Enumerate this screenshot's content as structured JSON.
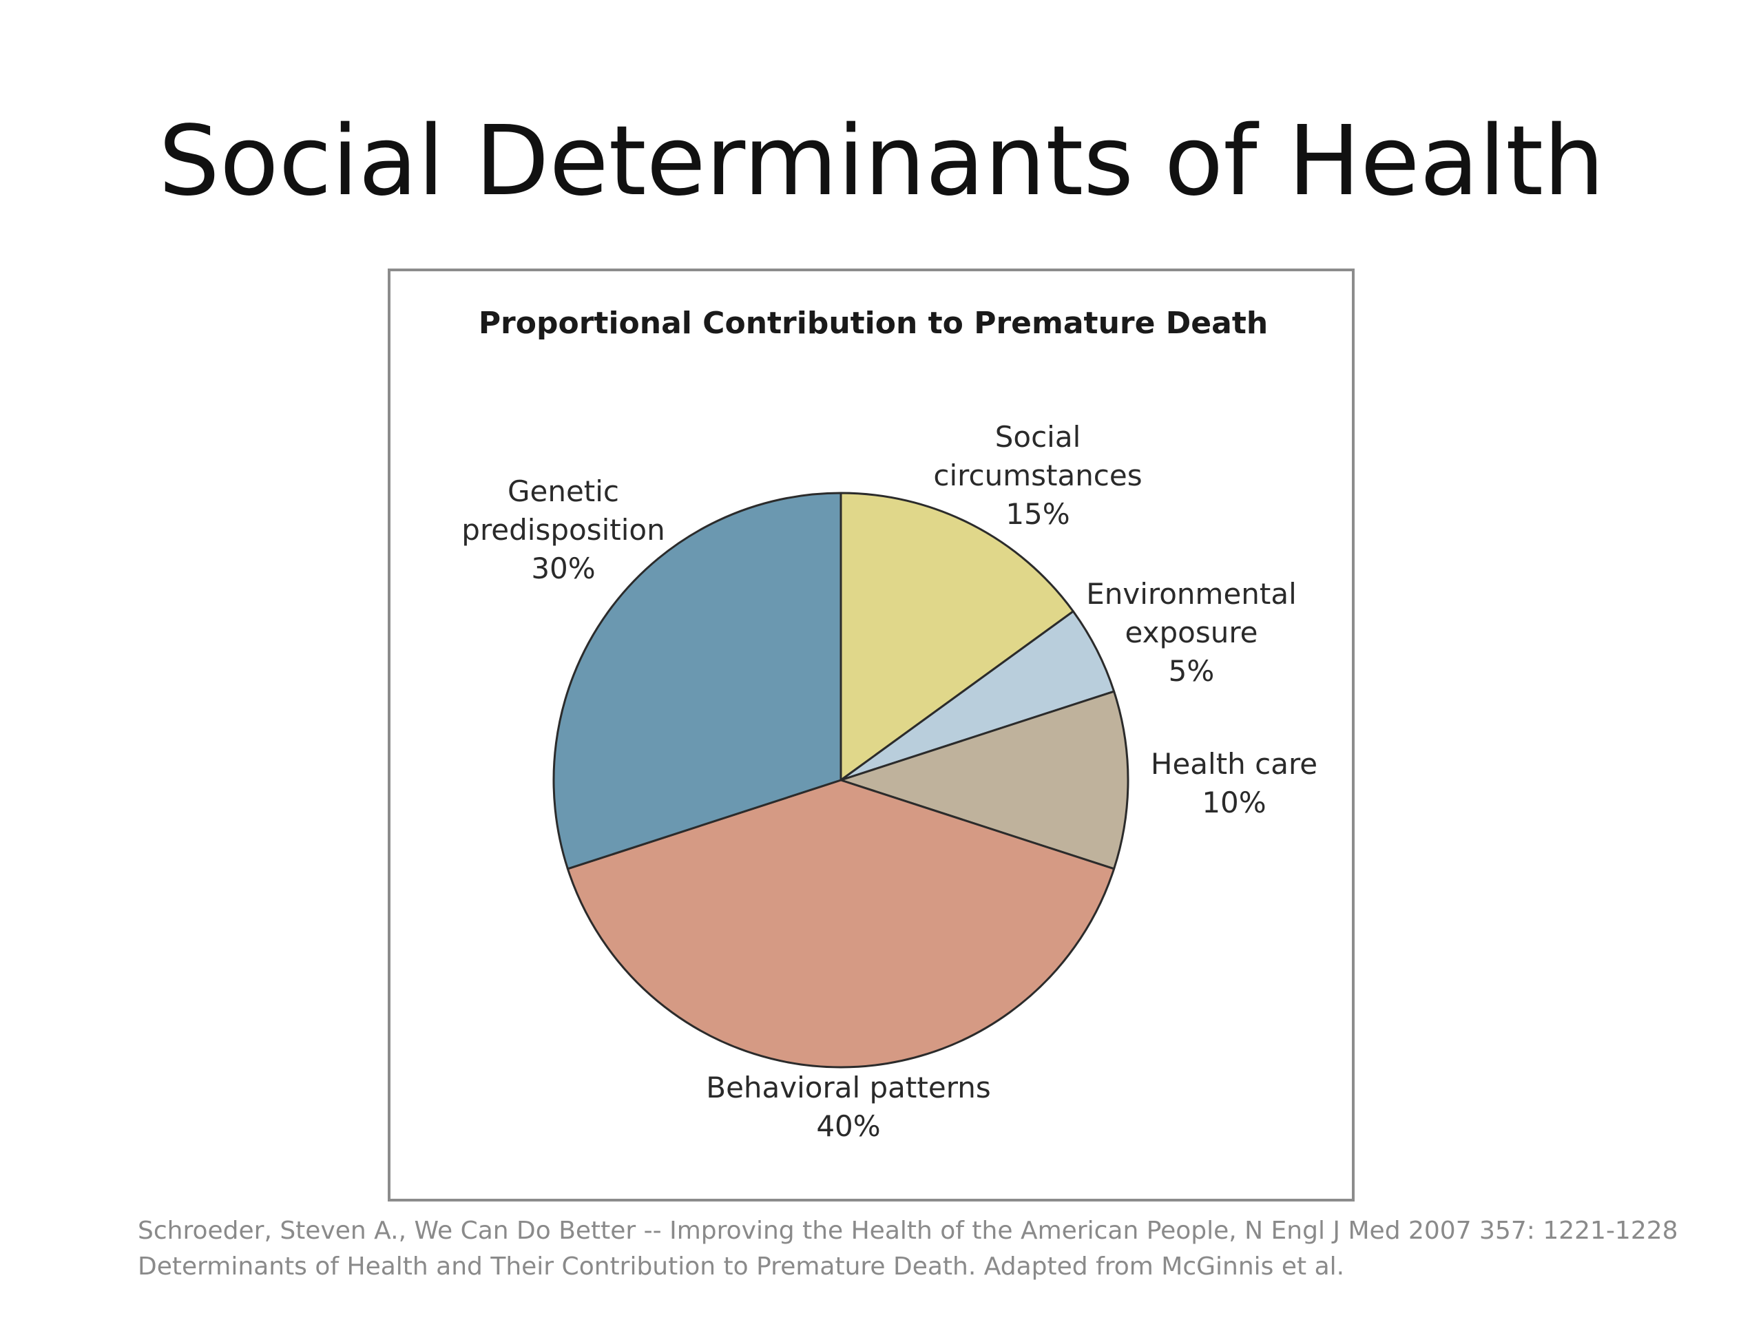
{
  "slide": {
    "title": "Social Determinants of Health"
  },
  "chart_data": {
    "type": "pie",
    "title": "Proportional Contribution to Premature Death",
    "slices": [
      {
        "name": "social-circumstances",
        "label_lines": [
          "Social",
          "circumstances",
          "15%"
        ],
        "value": 15,
        "color": "#e0d78a"
      },
      {
        "name": "environmental-exposure",
        "label_lines": [
          "Environmental",
          "exposure",
          "5%"
        ],
        "value": 5,
        "color": "#b9cedc"
      },
      {
        "name": "health-care",
        "label_lines": [
          "Health care",
          "10%"
        ],
        "value": 10,
        "color": "#bfb29c"
      },
      {
        "name": "behavioral-patterns",
        "label_lines": [
          "Behavioral patterns",
          "40%"
        ],
        "value": 40,
        "color": "#d59a84"
      },
      {
        "name": "genetic-predisposition",
        "label_lines": [
          "Genetic",
          "predisposition",
          "30%"
        ],
        "value": 30,
        "color": "#6b98b0"
      }
    ],
    "start": "top",
    "direction": "clockwise"
  },
  "source": {
    "lines": [
      "Schroeder, Steven A., We Can Do Better -- Improving the Health of the American People, N Engl J Med 2007 357: 1221-1228",
      "Determinants of Health and Their Contribution to Premature Death. Adapted from McGinnis et al."
    ]
  }
}
